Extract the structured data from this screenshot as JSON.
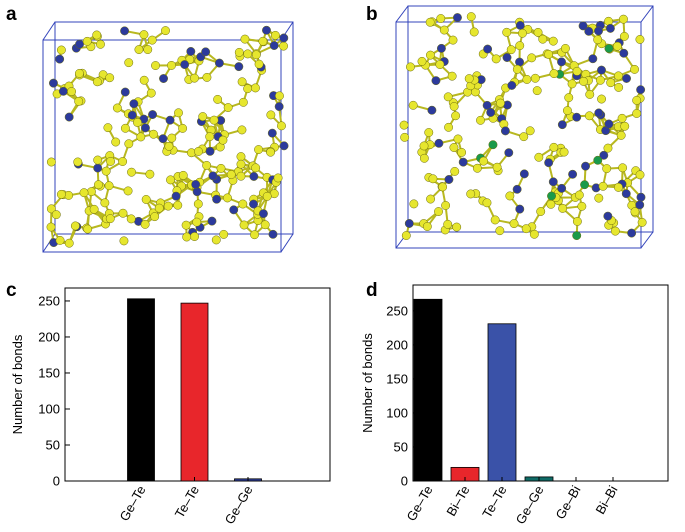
{
  "panels": [
    "a",
    "b",
    "c",
    "d"
  ],
  "chart_data": [
    {
      "type": "bar",
      "ylabel": "Number of bonds",
      "categories": [
        "Ge–Te",
        "Te–Te",
        "Ge–Ge"
      ],
      "values": [
        253,
        247,
        3
      ],
      "colors": [
        "#000000",
        "#e8262b",
        "#2e3f9c"
      ],
      "ylim": [
        0,
        268
      ],
      "yticks": [
        0,
        50,
        100,
        150,
        200,
        250
      ]
    },
    {
      "type": "bar",
      "ylabel": "Number of bonds",
      "categories": [
        "Ge–Te",
        "Bi–Te",
        "Te–Te",
        "Ge–Ge",
        "Ge–Bi",
        "Bi–Bi"
      ],
      "values": [
        267,
        20,
        231,
        6,
        0,
        0
      ],
      "colors": [
        "#000000",
        "#e8262b",
        "#3a52a8",
        "#0f6b66",
        "#0f6b66",
        "#0f6b66"
      ],
      "ylim": [
        0,
        288
      ],
      "yticks": [
        0,
        50,
        100,
        150,
        200,
        250
      ]
    }
  ]
}
